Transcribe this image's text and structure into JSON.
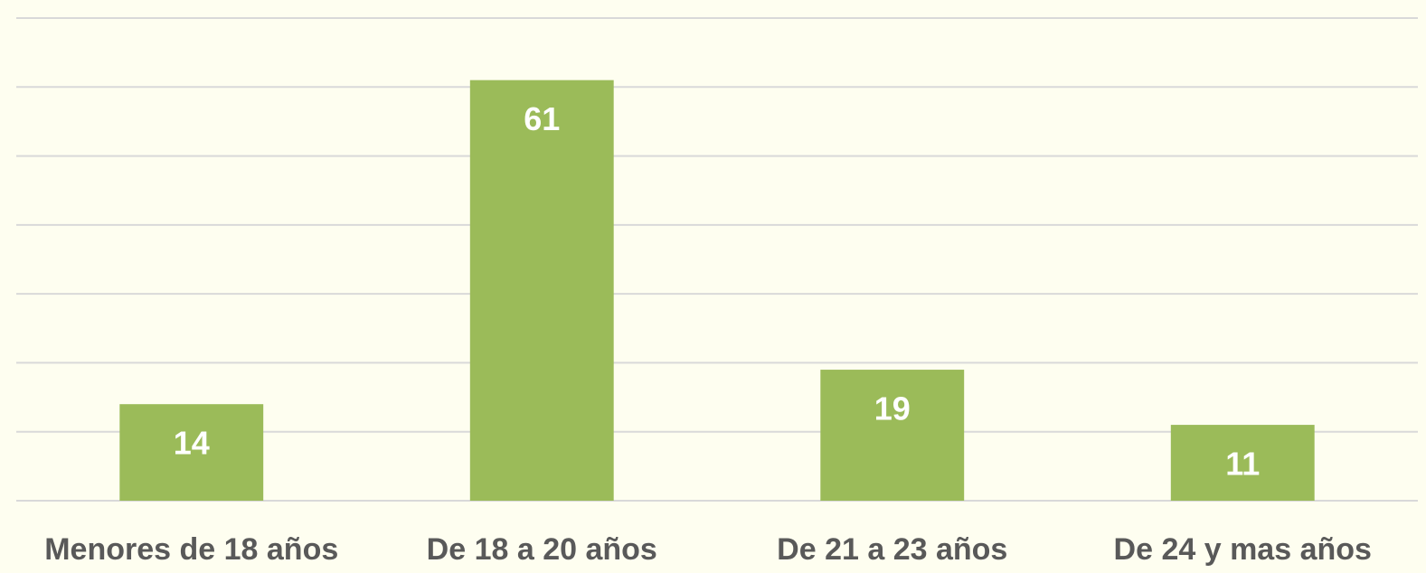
{
  "chart_data": {
    "type": "bar",
    "categories": [
      "Menores de 18 años",
      "De 18 a 20 años",
      "De 21 a 23 años",
      "De 24 y mas años"
    ],
    "values": [
      14,
      61,
      19,
      11
    ],
    "color": "#9bbb59",
    "ylim": [
      0,
      70
    ],
    "yticks": [
      0,
      10,
      20,
      30,
      40,
      50,
      60,
      70
    ],
    "grid": true
  }
}
